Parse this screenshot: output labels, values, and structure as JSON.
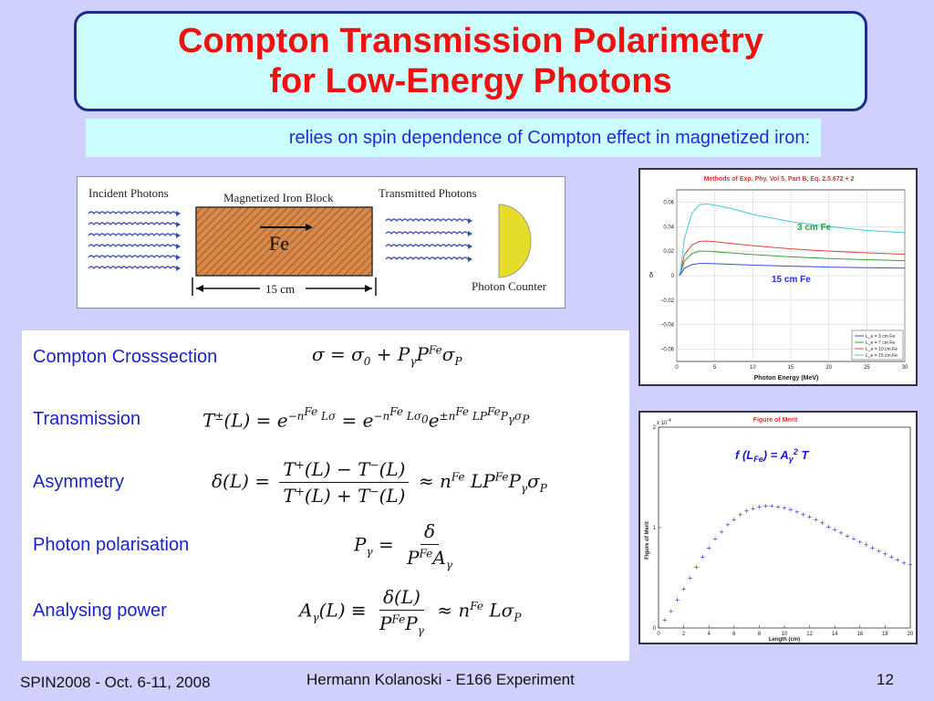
{
  "title": {
    "line1": "Compton Transmission Polarimetry",
    "line2": "for Low-Energy Photons"
  },
  "subtitle": "relies on spin dependence of Compton effect in magnetized iron:",
  "diagram": {
    "incident": "Incident Photons",
    "block": "Magnetized Iron Block",
    "transmitted": "Transmitted Photons",
    "fe": "Fe",
    "length": "15 cm",
    "counter": "Photon Counter"
  },
  "formulas": [
    {
      "label": "Compton Crosssection"
    },
    {
      "label": "Transmission"
    },
    {
      "label": "Asymmetry"
    },
    {
      "label": "Photon polarisation"
    },
    {
      "label": "Analysing power"
    }
  ],
  "plot1": {
    "title": "Methods of Exp. Phy. Vol 5, Part B, Eq. 2.5.672 + 2",
    "xlabel": "Photon Energy (MeV)",
    "ylabel": "δ",
    "annot_top": "3 cm Fe",
    "annot_bottom": "15 cm Fe",
    "legend": [
      "L_e = 3 cm Fe",
      "L_e = 7 cm Fe",
      "L_e = 10 cm Fe",
      "L_e = 15 cm Fe"
    ],
    "colors": [
      "#3a4fe0",
      "#3aa23a",
      "#e04040",
      "#40c8d8"
    ]
  },
  "plot2": {
    "title": "Figure of Merit",
    "xlabel": "Length (cm)",
    "ylabel": "Figure of Merit",
    "exp": "x 10",
    "exp_power": "-4",
    "annot": "f (LFe) = Aγ2 T"
  },
  "chart_data": [
    {
      "type": "line",
      "title": "Methods of Exp. Phy. Vol 5, Part B, Eq. 2.5.672 + 2",
      "xlabel": "Photon Energy (MeV)",
      "ylabel": "δ",
      "xlim": [
        0,
        30
      ],
      "ylim": [
        -0.07,
        0.07
      ],
      "x": [
        0.5,
        1,
        2,
        3,
        4,
        5,
        7,
        10,
        15,
        20,
        25,
        30
      ],
      "series": [
        {
          "name": "L_e = 3 cm Fe",
          "values": [
            0.001,
            0.006,
            0.009,
            0.01,
            0.01,
            0.0098,
            0.0093,
            0.0086,
            0.0077,
            0.007,
            0.0065,
            0.0061
          ]
        },
        {
          "name": "L_e = 7 cm Fe",
          "values": [
            0.002,
            0.012,
            0.018,
            0.02,
            0.02,
            0.0195,
            0.0186,
            0.0172,
            0.0154,
            0.014,
            0.013,
            0.0122
          ]
        },
        {
          "name": "L_e = 10 cm Fe",
          "values": [
            0.003,
            0.017,
            0.025,
            0.028,
            0.0282,
            0.0277,
            0.0263,
            0.0245,
            0.0219,
            0.02,
            0.0186,
            0.0175
          ]
        },
        {
          "name": "L_e = 15 cm Fe",
          "values": [
            0.004,
            0.03,
            0.051,
            0.058,
            0.0585,
            0.0575,
            0.055,
            0.05,
            0.044,
            0.04,
            0.037,
            0.035
          ]
        }
      ],
      "grid": true,
      "legend": "bottom-right"
    },
    {
      "type": "scatter",
      "title": "Figure of Merit",
      "xlabel": "Length (cm)",
      "ylabel": "Figure of Merit",
      "xlim": [
        0,
        20
      ],
      "ylim": [
        0,
        0.0002
      ],
      "x": [
        0.5,
        1,
        1.5,
        2,
        2.5,
        3,
        3.5,
        4,
        4.5,
        5,
        5.5,
        6,
        6.5,
        7,
        7.5,
        8,
        8.5,
        9,
        9.5,
        10,
        10.5,
        11,
        11.5,
        12,
        12.5,
        13,
        13.5,
        14,
        14.5,
        15,
        15.5,
        16,
        16.5,
        17,
        17.5,
        18,
        18.5,
        19,
        19.5,
        20
      ],
      "values": [
        8e-06,
        1.7e-05,
        2.8e-05,
        3.9e-05,
        5e-05,
        6.1e-05,
        7.1e-05,
        8e-05,
        8.9e-05,
        9.6e-05,
        0.000103,
        0.000108,
        0.000113,
        0.000117,
        0.000119,
        0.000121,
        0.000122,
        0.000122,
        0.000121,
        0.00012,
        0.000118,
        0.000116,
        0.000113,
        0.000111,
        0.000108,
        0.000105,
        0.000101,
        9.8e-05,
        9.5e-05,
        9.2e-05,
        8.9e-05,
        8.6e-05,
        8.3e-05,
        8e-05,
        7.7e-05,
        7.4e-05,
        7.1e-05,
        6.8e-05,
        6.5e-05,
        6.3e-05
      ],
      "grid": false
    }
  ],
  "footer": {
    "left": "SPIN2008 - Oct. 6-11, 2008",
    "center": "Hermann Kolanoski - E166 Experiment",
    "page": "12"
  }
}
